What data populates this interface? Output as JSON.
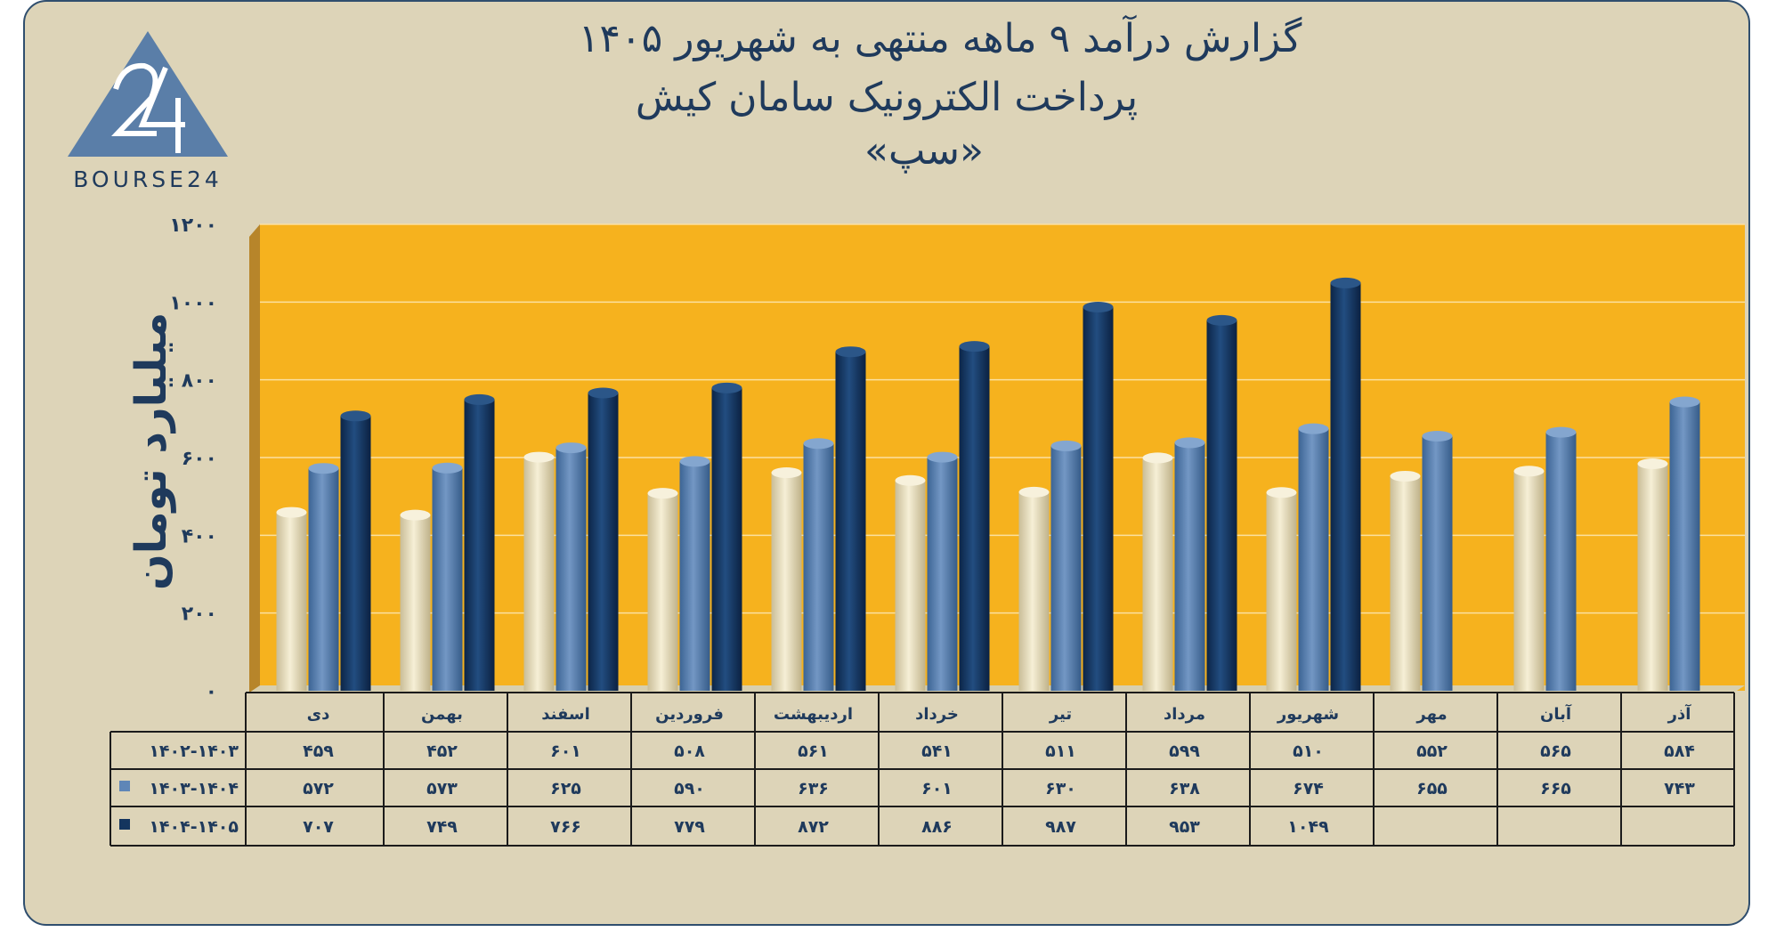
{
  "title": {
    "line1": "گزارش  درآمد ۹ ماهه منتهی به شهریور ۱۴۰۵",
    "line2": "پرداخت الکترونیک سامان کیش",
    "line3": "«سپ»"
  },
  "logo": {
    "text": "BOURSE24",
    "icon": "bourse24-logo"
  },
  "colors": {
    "plot_bg": "#f6b21e",
    "background": "#ddd4b8",
    "series": [
      "#efe6c8",
      "#5f86b7",
      "#14355e"
    ],
    "text": "#1f3a5c"
  },
  "chart_data": {
    "type": "bar",
    "ylabel": "میلیارد تومان",
    "ylim": [
      0,
      1200
    ],
    "yticks": [
      "۰",
      "۲۰۰",
      "۴۰۰",
      "۶۰۰",
      "۸۰۰",
      "۱۰۰۰",
      "۱۲۰۰"
    ],
    "ytick_values": [
      0,
      200,
      400,
      600,
      800,
      1000,
      1200
    ],
    "grid": true,
    "categories": [
      "دی",
      "بهمن",
      "اسفند",
      "فروردین",
      "اردیبهشت",
      "خرداد",
      "تیر",
      "مرداد",
      "شهریور",
      "مهر",
      "آبان",
      "آذر"
    ],
    "series": [
      {
        "name": "۱۴۰۲-۱۴۰۳",
        "values": [
          459,
          452,
          601,
          508,
          561,
          541,
          511,
          599,
          510,
          552,
          565,
          584
        ],
        "labels": [
          "۴۵۹",
          "۴۵۲",
          "۶۰۱",
          "۵۰۸",
          "۵۶۱",
          "۵۴۱",
          "۵۱۱",
          "۵۹۹",
          "۵۱۰",
          "۵۵۲",
          "۵۶۵",
          "۵۸۴"
        ]
      },
      {
        "name": "۱۴۰۳-۱۴۰۴",
        "values": [
          572,
          573,
          625,
          590,
          636,
          601,
          630,
          638,
          674,
          655,
          665,
          743
        ],
        "labels": [
          "۵۷۲",
          "۵۷۳",
          "۶۲۵",
          "۵۹۰",
          "۶۳۶",
          "۶۰۱",
          "۶۳۰",
          "۶۳۸",
          "۶۷۴",
          "۶۵۵",
          "۶۶۵",
          "۷۴۳"
        ]
      },
      {
        "name": "۱۴۰۴-۱۴۰۵",
        "values": [
          707,
          749,
          766,
          779,
          872,
          886,
          987,
          953,
          1049,
          null,
          null,
          null
        ],
        "labels": [
          "۷۰۷",
          "۷۴۹",
          "۷۶۶",
          "۷۷۹",
          "۸۷۲",
          "۸۸۶",
          "۹۸۷",
          "۹۵۳",
          "۱۰۴۹",
          "",
          "",
          ""
        ]
      }
    ]
  }
}
